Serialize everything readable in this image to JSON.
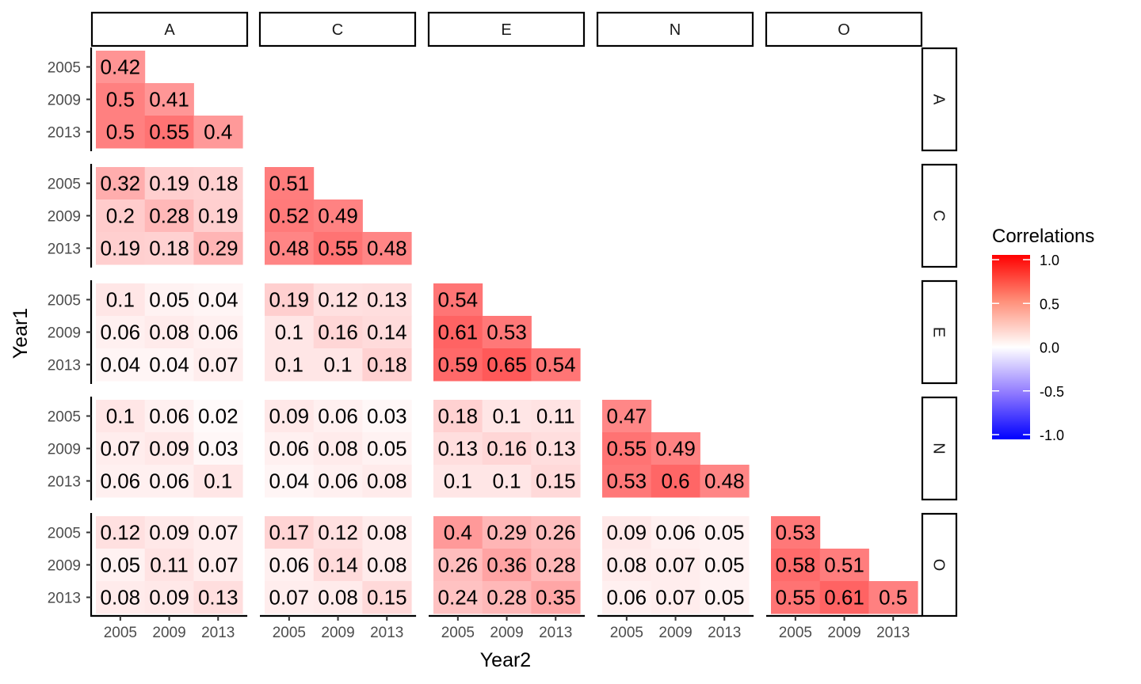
{
  "chart_data": {
    "type": "heatmap",
    "facets": [
      "A",
      "C",
      "E",
      "N",
      "O"
    ],
    "years": [
      "2005",
      "2009",
      "2013"
    ],
    "xlabel": "Year2",
    "ylabel": "Year1",
    "legend": {
      "title": "Correlations",
      "ticks": [
        "1.0",
        "0.5",
        "0.0",
        "-0.5",
        "-1.0"
      ],
      "tick_values": [
        1.0,
        0.5,
        0.0,
        -0.5,
        -1.0
      ],
      "low_color": "#0000ff",
      "mid_color": "#ffffff",
      "high_color": "#ff0000",
      "placement": "right"
    },
    "panels": {
      "A|A": [
        [
          "0.42",
          null,
          null
        ],
        [
          "0.5",
          "0.41",
          null
        ],
        [
          "0.5",
          "0.55",
          "0.4"
        ]
      ],
      "C|A": [
        [
          "0.32",
          "0.19",
          "0.18"
        ],
        [
          "0.2",
          "0.28",
          "0.19"
        ],
        [
          "0.19",
          "0.18",
          "0.29"
        ]
      ],
      "C|C": [
        [
          "0.51",
          null,
          null
        ],
        [
          "0.52",
          "0.49",
          null
        ],
        [
          "0.48",
          "0.55",
          "0.48"
        ]
      ],
      "E|A": [
        [
          "0.1",
          "0.05",
          "0.04"
        ],
        [
          "0.06",
          "0.08",
          "0.06"
        ],
        [
          "0.04",
          "0.04",
          "0.07"
        ]
      ],
      "E|C": [
        [
          "0.19",
          "0.12",
          "0.13"
        ],
        [
          "0.1",
          "0.16",
          "0.14"
        ],
        [
          "0.1",
          "0.1",
          "0.18"
        ]
      ],
      "E|E": [
        [
          "0.54",
          null,
          null
        ],
        [
          "0.61",
          "0.53",
          null
        ],
        [
          "0.59",
          "0.65",
          "0.54"
        ]
      ],
      "N|A": [
        [
          "0.1",
          "0.06",
          "0.02"
        ],
        [
          "0.07",
          "0.09",
          "0.03"
        ],
        [
          "0.06",
          "0.06",
          "0.1"
        ]
      ],
      "N|C": [
        [
          "0.09",
          "0.06",
          "0.03"
        ],
        [
          "0.06",
          "0.08",
          "0.05"
        ],
        [
          "0.04",
          "0.06",
          "0.08"
        ]
      ],
      "N|E": [
        [
          "0.18",
          "0.1",
          "0.11"
        ],
        [
          "0.13",
          "0.16",
          "0.13"
        ],
        [
          "0.1",
          "0.1",
          "0.15"
        ]
      ],
      "N|N": [
        [
          "0.47",
          null,
          null
        ],
        [
          "0.55",
          "0.49",
          null
        ],
        [
          "0.53",
          "0.6",
          "0.48"
        ]
      ],
      "O|A": [
        [
          "0.12",
          "0.09",
          "0.07"
        ],
        [
          "0.05",
          "0.11",
          "0.07"
        ],
        [
          "0.08",
          "0.09",
          "0.13"
        ]
      ],
      "O|C": [
        [
          "0.17",
          "0.12",
          "0.08"
        ],
        [
          "0.06",
          "0.14",
          "0.08"
        ],
        [
          "0.07",
          "0.08",
          "0.15"
        ]
      ],
      "O|E": [
        [
          "0.4",
          "0.29",
          "0.26"
        ],
        [
          "0.26",
          "0.36",
          "0.28"
        ],
        [
          "0.24",
          "0.28",
          "0.35"
        ]
      ],
      "O|N": [
        [
          "0.09",
          "0.06",
          "0.05"
        ],
        [
          "0.08",
          "0.07",
          "0.05"
        ],
        [
          "0.06",
          "0.07",
          "0.05"
        ]
      ],
      "O|O": [
        [
          "0.53",
          null,
          null
        ],
        [
          "0.58",
          "0.51",
          null
        ],
        [
          "0.55",
          "0.61",
          "0.5"
        ]
      ]
    }
  }
}
